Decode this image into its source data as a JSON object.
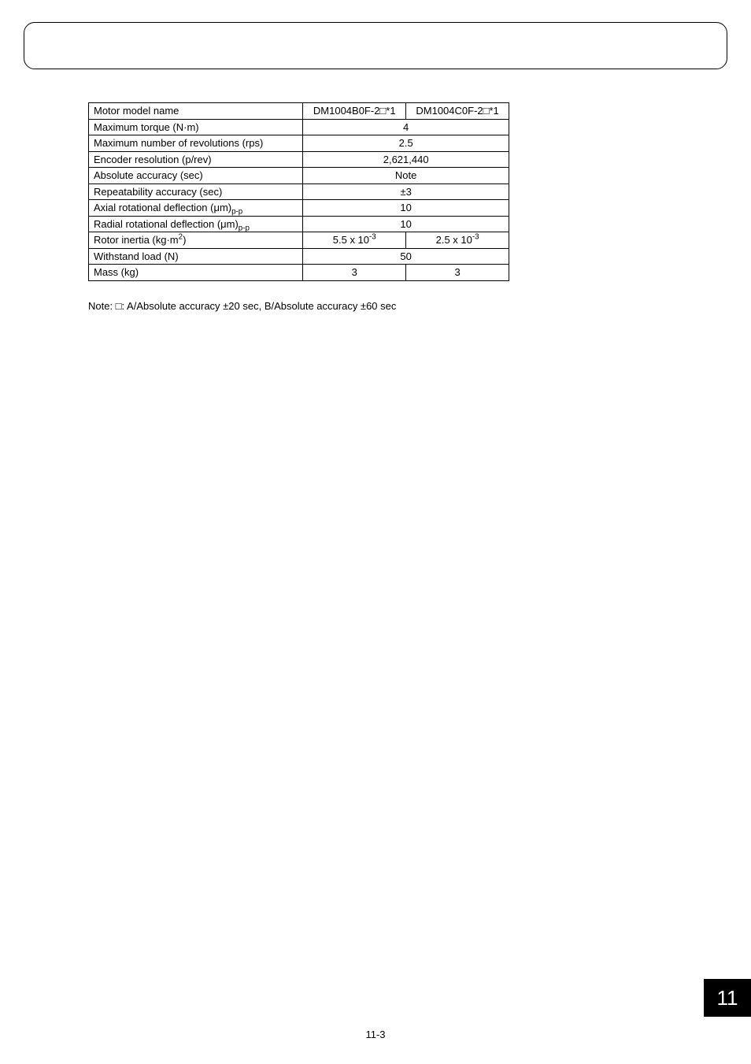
{
  "table": {
    "rows": [
      {
        "label": "Motor model name",
        "v1": "DM1004B0F-2□*1",
        "v2": "DM1004C0F-2□*1",
        "span": false
      },
      {
        "label": "Maximum torque (N·m)",
        "val": "4",
        "span": true
      },
      {
        "label": "Maximum number of revolutions (rps)",
        "val": "2.5",
        "span": true
      },
      {
        "label": "Encoder resolution (p/rev)",
        "val": "2,621,440",
        "span": true
      },
      {
        "label": "Absolute accuracy (sec)",
        "val": "Note",
        "span": true
      },
      {
        "label": "Repeatability accuracy (sec)",
        "val": "±3",
        "span": true
      },
      {
        "label_html": "Axial rotational deflection (μm)<sub>p-p</sub>",
        "val": "10",
        "span": true
      },
      {
        "label_html": "Radial rotational deflection (μm)<sub>p-p</sub>",
        "val": "10",
        "span": true
      },
      {
        "label_html": "Rotor inertia (kg·m<sup>2</sup>)",
        "v1_html": "5.5 x 10<sup>-3</sup>",
        "v2_html": "2.5 x 10<sup>-3</sup>",
        "span": false
      },
      {
        "label": "Withstand load (N)",
        "val": "50",
        "span": true
      },
      {
        "label": "Mass (kg)",
        "v1": "3",
        "v2": "3",
        "span": false
      }
    ]
  },
  "note": "Note:   □: A/Absolute accuracy ±20 sec, B/Absolute accuracy ±60 sec",
  "page_footer": "11-3",
  "tab": "11"
}
